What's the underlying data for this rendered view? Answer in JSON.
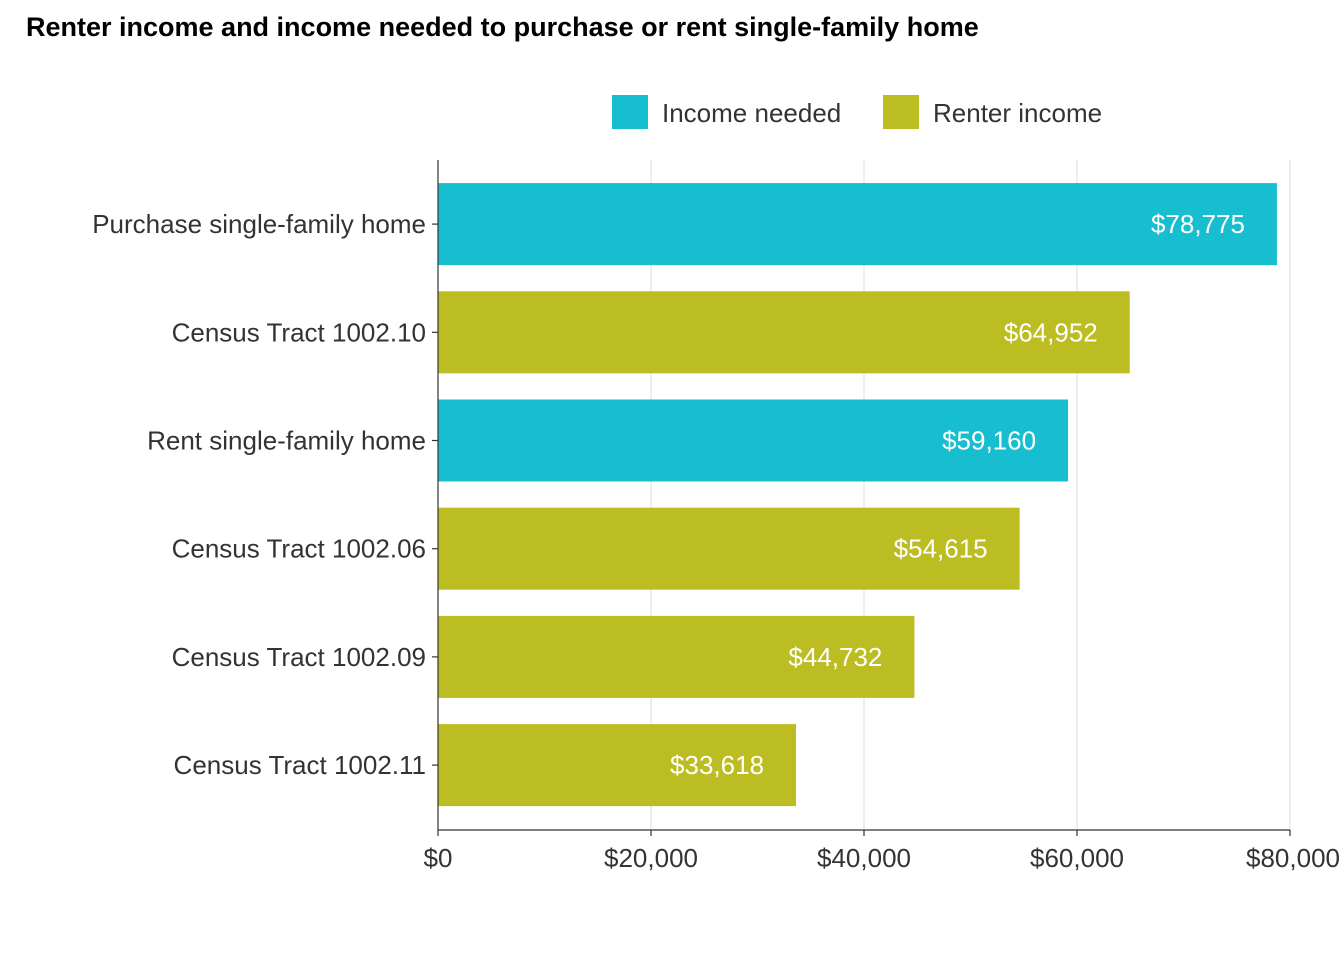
{
  "chart_data": {
    "type": "bar",
    "orientation": "horizontal",
    "title": "Renter income and income needed to purchase or rent single-family home",
    "xlabel": "",
    "ylabel": "",
    "categories": [
      "Purchase single-family home",
      "Census Tract 1002.10",
      "Rent single-family home",
      "Census Tract 1002.06",
      "Census Tract 1002.09",
      "Census Tract 1002.11"
    ],
    "values": [
      78775,
      64952,
      59160,
      54615,
      44732,
      33618
    ],
    "value_labels": [
      "$78,775",
      "$64,952",
      "$59,160",
      "$54,615",
      "$44,732",
      "$33,618"
    ],
    "groups": [
      "Income needed",
      "Renter income",
      "Income needed",
      "Renter income",
      "Renter income",
      "Renter income"
    ],
    "legend": {
      "position": "top",
      "entries": [
        {
          "name": "Income needed",
          "color": "#17becf"
        },
        {
          "name": "Renter income",
          "color": "#bcbd22"
        }
      ]
    },
    "xlim": [
      0,
      80000
    ],
    "x_ticks": [
      0,
      20000,
      40000,
      60000,
      80000
    ],
    "x_tick_labels": [
      "$0",
      "$20,000",
      "$40,000",
      "$60,000",
      "$80,000"
    ],
    "grid": {
      "vertical": true,
      "horizontal": false,
      "color": "#dddddd"
    }
  }
}
